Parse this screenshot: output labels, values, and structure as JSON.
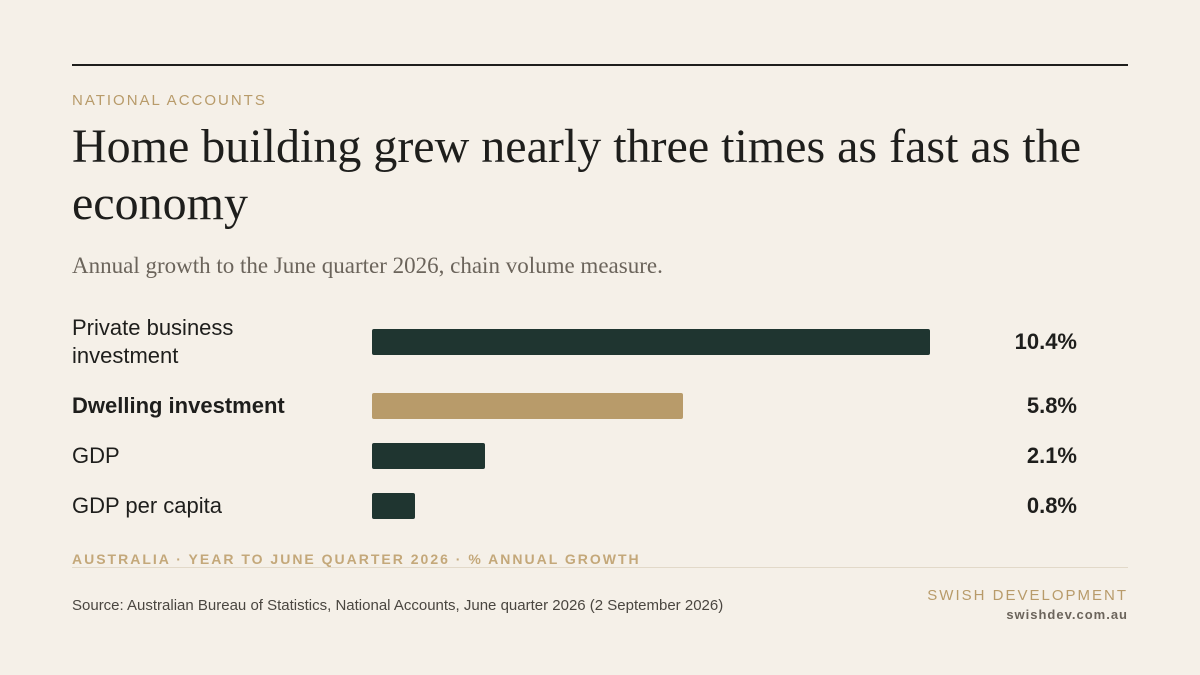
{
  "header": {
    "kicker": "NATIONAL ACCOUNTS",
    "headline": "Home building grew nearly three times as fast as the economy",
    "subtitle": "Annual growth to the June quarter 2026, chain volume measure."
  },
  "chart_data": {
    "type": "bar",
    "orientation": "horizontal",
    "categories": [
      "Private business investment",
      "Dwelling investment",
      "GDP",
      "GDP per capita"
    ],
    "values": [
      10.4,
      5.8,
      2.1,
      0.8
    ],
    "value_labels": [
      "10.4%",
      "5.8%",
      "2.1%",
      "0.8%"
    ],
    "highlight_index": 1,
    "colors": {
      "default": "#1f3530",
      "highlight": "#b89b6a"
    },
    "xlim": [
      0,
      10.4
    ],
    "grid": false,
    "legend": "none",
    "note": "AUSTRALIA · YEAR TO JUNE QUARTER 2026 · % ANNUAL GROWTH"
  },
  "footer": {
    "source": "Source: Australian Bureau of Statistics, National Accounts, June quarter 2026 (2 September 2026)",
    "brand": "SWISH DEVELOPMENT",
    "url": "swishdev.com.au"
  },
  "colors": {
    "background": "#f5f0e8",
    "text": "#1e1e1c",
    "accent": "#b89b6a",
    "muted": "#6b645b"
  }
}
